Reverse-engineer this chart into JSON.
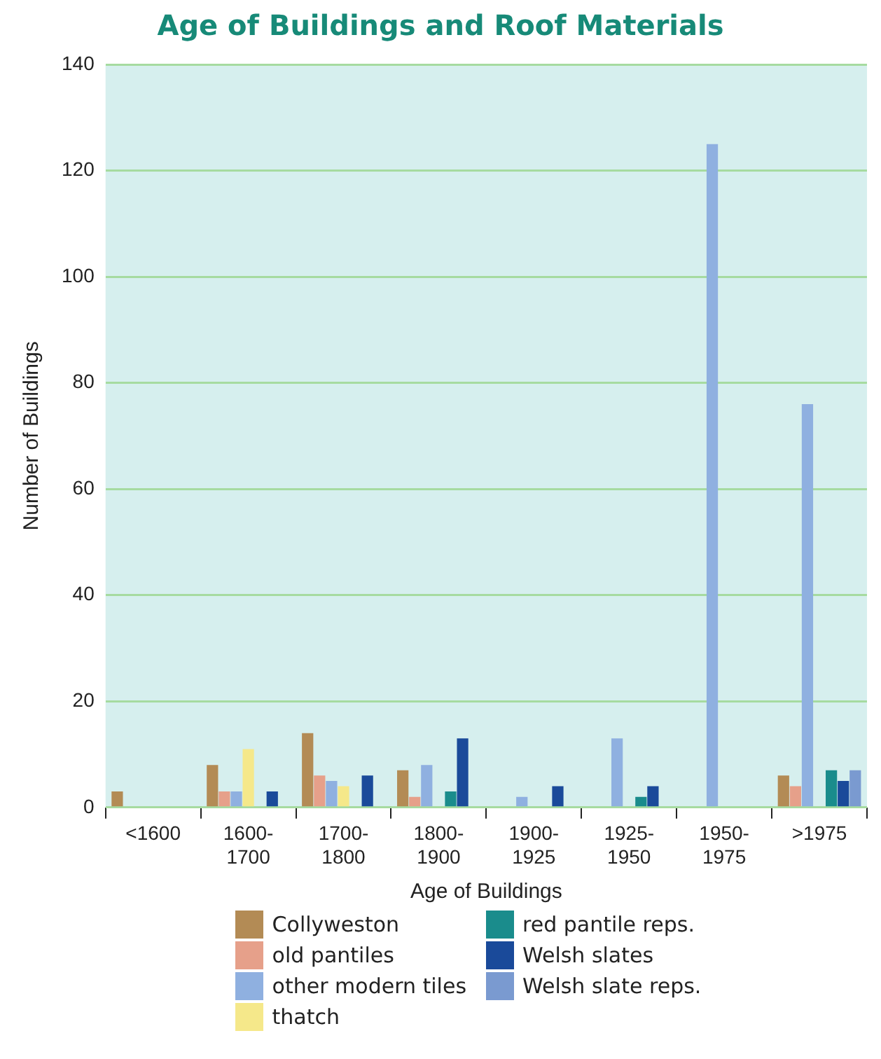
{
  "chart_data": {
    "type": "bar",
    "title": "Age of Buildings and Roof Materials",
    "xlabel": "Age of Buildings",
    "ylabel": "Number of Buildings",
    "categories": [
      "<1600",
      "1600-\n1700",
      "1700-\n1800",
      "1800-\n1900",
      "1900-\n1925",
      "1925-\n1950",
      "1950-\n1975",
      ">1975"
    ],
    "series": [
      {
        "name": "Collyweston",
        "color": "#b38b55",
        "values": [
          3,
          8,
          14,
          7,
          0,
          0,
          0,
          6
        ]
      },
      {
        "name": "old pantiles",
        "color": "#e6a08a",
        "values": [
          0,
          3,
          6,
          2,
          0,
          0,
          0,
          4
        ]
      },
      {
        "name": "other modern tiles",
        "color": "#8fb0e0",
        "values": [
          0,
          3,
          5,
          8,
          2,
          13,
          125,
          76
        ]
      },
      {
        "name": "thatch",
        "color": "#f5e88a",
        "values": [
          0,
          11,
          4,
          0,
          0,
          0,
          0,
          0
        ]
      },
      {
        "name": "red pantile reps.",
        "color": "#1a8c8c",
        "values": [
          0,
          0,
          0,
          3,
          0,
          2,
          0,
          7
        ]
      },
      {
        "name": "Welsh slates",
        "color": "#1a4a9a",
        "values": [
          0,
          3,
          6,
          13,
          4,
          4,
          0,
          5
        ]
      },
      {
        "name": "Welsh slate reps.",
        "color": "#7a9ad0",
        "values": [
          0,
          0,
          0,
          0,
          0,
          0,
          0,
          7
        ]
      }
    ],
    "ylim": [
      0,
      140
    ],
    "yticks": [
      0,
      20,
      40,
      60,
      80,
      100,
      120,
      140
    ],
    "grid": "y",
    "legend": "bottom"
  }
}
